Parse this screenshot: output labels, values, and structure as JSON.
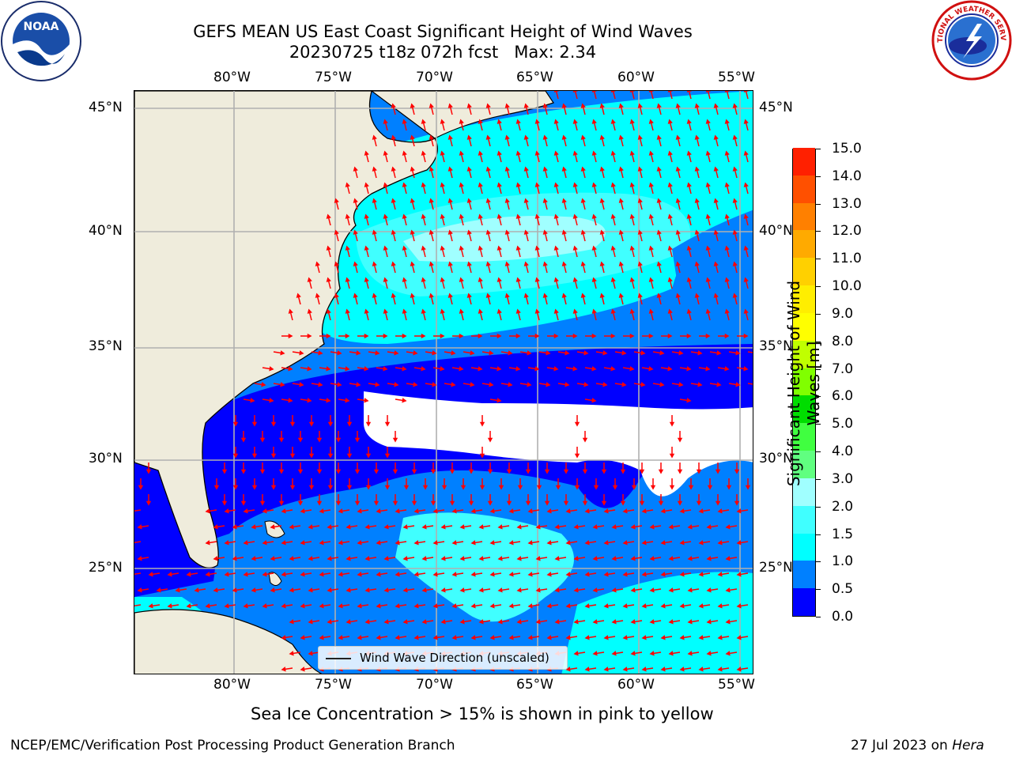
{
  "header": {
    "title_line1": "GEFS MEAN US East Coast Significant Height of Wind Waves",
    "title_line2": "20230725 t18z 072h fcst   Max: 2.34"
  },
  "logos": {
    "noaa_text": "NOAA",
    "noaa_ring_text": "NATIONAL OCEANIC AND ATMOSPHERIC ADMINISTRATION · U.S. DEPARTMENT OF COMMERCE",
    "nws_ring_text": "NATIONAL WEATHER SERVICE"
  },
  "map": {
    "lon_labels": [
      "80°W",
      "75°W",
      "70°W",
      "65°W",
      "60°W",
      "55°W"
    ],
    "lat_labels_left": [
      "45°N",
      "40°N",
      "35°N",
      "30°N",
      "25°N"
    ],
    "lat_labels_right": [
      "45°N",
      "40°N",
      "35°N",
      "30°N",
      "25°N"
    ],
    "legend_label": "Wind Wave Direction (unscaled)",
    "colors": {
      "land": "#efecdc",
      "coast": "#000000",
      "grid": "#b0b0b0",
      "arrow": "#ff0000",
      "no_data": "#ffffff"
    }
  },
  "colorbar": {
    "label": "Significant Height of Wind Waves [m]",
    "ticks": [
      "0.0",
      "0.5",
      "1.0",
      "1.5",
      "2.0",
      "3.0",
      "4.0",
      "5.0",
      "6.0",
      "7.0",
      "8.0",
      "9.0",
      "10.0",
      "11.0",
      "12.0",
      "13.0",
      "14.0",
      "15.0"
    ],
    "colors": [
      "#0000ff",
      "#0080ff",
      "#00ffff",
      "#40ffff",
      "#a0ffff",
      "#60ff80",
      "#40ff40",
      "#00dd00",
      "#80ff00",
      "#c0ff00",
      "#ffff00",
      "#ffee00",
      "#ffd000",
      "#ffaa00",
      "#ff8000",
      "#ff5000",
      "#ff2000",
      "#ff0000"
    ]
  },
  "footer": {
    "note": "Sea Ice Concentration > 15% is shown in pink to yellow",
    "credit": "NCEP/EMC/Verification Post Processing Product Generation Branch",
    "date": "27 Jul 2023 on",
    "machine": "Hera"
  }
}
